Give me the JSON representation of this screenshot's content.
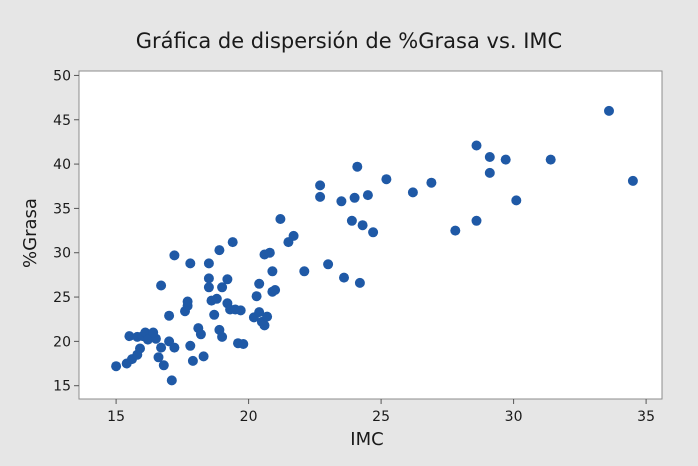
{
  "chart_data": {
    "type": "scatter",
    "title": "Gráfica de dispersión de %Grasa vs. IMC",
    "xlabel": "IMC",
    "ylabel": "%Grasa",
    "xlim": [
      13.6,
      35.6
    ],
    "ylim": [
      13.5,
      50.5
    ],
    "x_ticks": [
      15,
      20,
      25,
      30,
      35
    ],
    "y_ticks": [
      15,
      20,
      25,
      30,
      35,
      40,
      45,
      50
    ],
    "grid": false,
    "legend": "none",
    "marker_color": "#1f59a6",
    "points": [
      [
        15.0,
        17.2
      ],
      [
        15.4,
        17.5
      ],
      [
        15.6,
        18.0
      ],
      [
        15.8,
        18.5
      ],
      [
        15.9,
        19.2
      ],
      [
        15.5,
        20.6
      ],
      [
        15.8,
        20.5
      ],
      [
        16.0,
        20.6
      ],
      [
        16.1,
        21.0
      ],
      [
        16.2,
        20.2
      ],
      [
        16.5,
        20.3
      ],
      [
        16.4,
        21.0
      ],
      [
        16.6,
        18.2
      ],
      [
        16.7,
        19.3
      ],
      [
        16.8,
        17.3
      ],
      [
        16.7,
        26.3
      ],
      [
        17.0,
        22.9
      ],
      [
        17.0,
        20.0
      ],
      [
        17.2,
        19.3
      ],
      [
        17.2,
        29.7
      ],
      [
        17.1,
        15.6
      ],
      [
        17.6,
        23.4
      ],
      [
        17.7,
        24.0
      ],
      [
        17.7,
        24.5
      ],
      [
        17.8,
        19.5
      ],
      [
        17.8,
        28.8
      ],
      [
        17.9,
        17.8
      ],
      [
        18.1,
        21.5
      ],
      [
        18.2,
        20.8
      ],
      [
        18.3,
        18.3
      ],
      [
        18.5,
        28.8
      ],
      [
        18.5,
        27.1
      ],
      [
        18.5,
        26.1
      ],
      [
        18.6,
        24.6
      ],
      [
        18.7,
        23.0
      ],
      [
        18.8,
        24.8
      ],
      [
        18.9,
        21.3
      ],
      [
        19.0,
        20.5
      ],
      [
        18.9,
        30.3
      ],
      [
        19.0,
        26.1
      ],
      [
        19.2,
        24.3
      ],
      [
        19.2,
        27.0
      ],
      [
        19.3,
        23.6
      ],
      [
        19.4,
        31.2
      ],
      [
        19.5,
        23.6
      ],
      [
        19.6,
        19.8
      ],
      [
        19.7,
        23.5
      ],
      [
        19.8,
        19.7
      ],
      [
        20.2,
        22.7
      ],
      [
        20.3,
        25.1
      ],
      [
        20.4,
        23.3
      ],
      [
        20.4,
        26.5
      ],
      [
        20.5,
        22.2
      ],
      [
        20.6,
        21.8
      ],
      [
        20.6,
        29.8
      ],
      [
        20.7,
        22.8
      ],
      [
        20.8,
        30.0
      ],
      [
        20.9,
        25.6
      ],
      [
        21.0,
        25.8
      ],
      [
        20.9,
        27.9
      ],
      [
        21.2,
        33.8
      ],
      [
        21.5,
        31.2
      ],
      [
        21.7,
        31.9
      ],
      [
        22.1,
        27.9
      ],
      [
        22.7,
        37.6
      ],
      [
        22.7,
        36.3
      ],
      [
        23.0,
        28.7
      ],
      [
        23.5,
        35.8
      ],
      [
        23.6,
        27.2
      ],
      [
        23.9,
        33.6
      ],
      [
        24.0,
        36.2
      ],
      [
        24.1,
        39.7
      ],
      [
        24.2,
        26.6
      ],
      [
        24.3,
        33.1
      ],
      [
        24.5,
        36.5
      ],
      [
        24.7,
        32.3
      ],
      [
        25.2,
        38.3
      ],
      [
        26.2,
        36.8
      ],
      [
        26.9,
        37.9
      ],
      [
        27.8,
        32.5
      ],
      [
        28.6,
        42.1
      ],
      [
        28.6,
        33.6
      ],
      [
        29.1,
        40.8
      ],
      [
        29.1,
        39.0
      ],
      [
        29.7,
        40.5
      ],
      [
        30.1,
        35.9
      ],
      [
        31.4,
        40.5
      ],
      [
        33.6,
        46.0
      ],
      [
        34.5,
        38.1
      ]
    ]
  }
}
